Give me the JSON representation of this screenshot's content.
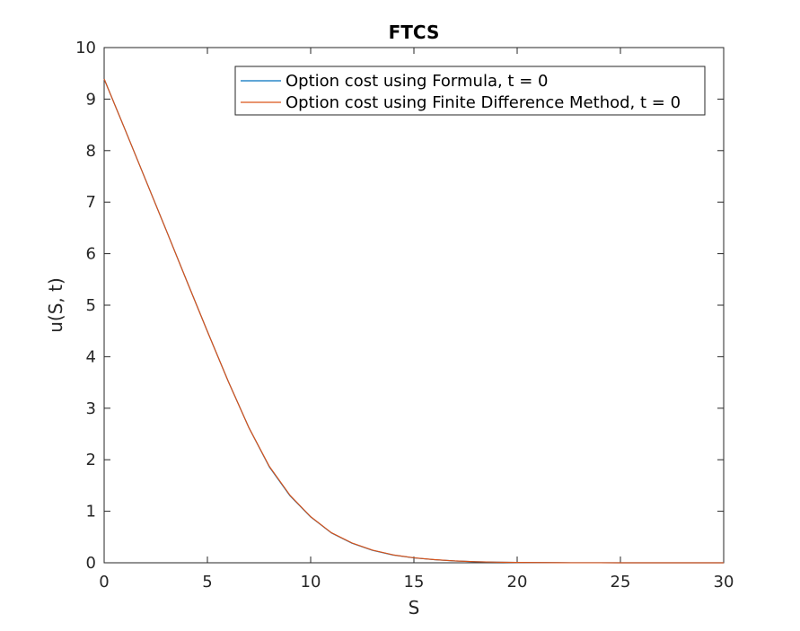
{
  "chart_data": {
    "type": "line",
    "title": "FTCS",
    "xlabel": "S",
    "ylabel": "u(S, t)",
    "xlim": [
      0,
      30
    ],
    "ylim": [
      0,
      10
    ],
    "xticks": [
      0,
      5,
      10,
      15,
      20,
      25,
      30
    ],
    "yticks": [
      0,
      1,
      2,
      3,
      4,
      5,
      6,
      7,
      8,
      9,
      10
    ],
    "grid": false,
    "legend_position": "top-right",
    "x": [
      0,
      1,
      2,
      3,
      4,
      5,
      6,
      7,
      8,
      9,
      10,
      11,
      12,
      13,
      14,
      15,
      16,
      17,
      18,
      19,
      20,
      21,
      22,
      23,
      24,
      25,
      26,
      27,
      28,
      29,
      30
    ],
    "series": [
      {
        "name": "Option cost using Formula, t = 0",
        "color": "#0072BD",
        "values": [
          9.39,
          8.42,
          7.44,
          6.46,
          5.47,
          4.49,
          3.53,
          2.63,
          1.86,
          1.3,
          0.89,
          0.58,
          0.38,
          0.24,
          0.15,
          0.095,
          0.06,
          0.035,
          0.02,
          0.012,
          0.007,
          0.004,
          0.002,
          0.001,
          0.0008,
          0.0005,
          0.0003,
          0.0002,
          0.0001,
          0.0001,
          0.0
        ]
      },
      {
        "name": "Option cost using Finite Difference Method, t = 0",
        "color": "#D95319",
        "values": [
          9.39,
          8.42,
          7.44,
          6.46,
          5.47,
          4.49,
          3.53,
          2.63,
          1.87,
          1.31,
          0.895,
          0.585,
          0.385,
          0.245,
          0.153,
          0.097,
          0.061,
          0.036,
          0.021,
          0.012,
          0.007,
          0.004,
          0.002,
          0.001,
          0.0008,
          0.0005,
          0.0003,
          0.0002,
          0.0001,
          0.0001,
          0.0
        ]
      }
    ]
  }
}
